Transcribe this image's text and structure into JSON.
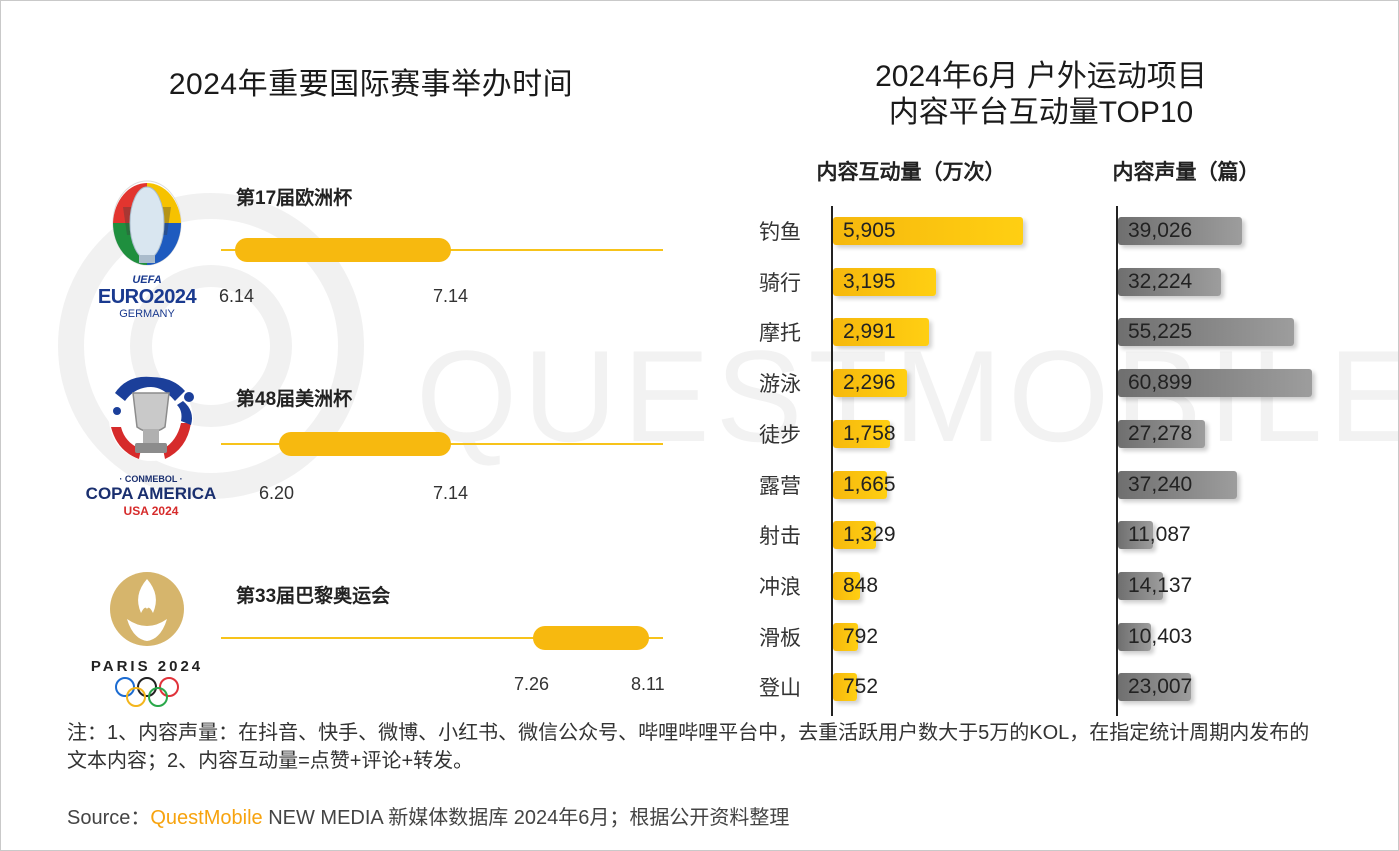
{
  "timeline": {
    "title": "2024年重要国际赛事举办时间",
    "accent_color": "#f7b90f",
    "events": [
      {
        "name": "第17届欧洲杯",
        "start": "6.14",
        "end": "7.14",
        "logo": {
          "type": "euro-2024-trophy-icon",
          "lines": [
            "UEFA",
            "EURO2024",
            "GERMANY"
          ]
        }
      },
      {
        "name": "第48届美洲杯",
        "start": "6.20",
        "end": "7.14",
        "logo": {
          "type": "copa-america-trophy-icon",
          "lines": [
            "· CONMEBOL ·",
            "COPA AMERICA",
            "USA 2024"
          ]
        }
      },
      {
        "name": "第33届巴黎奥运会",
        "start": "7.26",
        "end": "8.11",
        "logo": {
          "type": "paris-2024-flame-icon",
          "lines": [
            "PARIS 2024"
          ]
        }
      }
    ]
  },
  "chart_data": {
    "type": "bar",
    "title": "2024年6月 户外运动项目\n内容平台互动量TOP10",
    "categories": [
      "钓鱼",
      "骑行",
      "摩托",
      "游泳",
      "徒步",
      "露营",
      "射击",
      "冲浪",
      "滑板",
      "登山"
    ],
    "series": [
      {
        "name": "内容互动量（万次）",
        "color": "#f7b90f",
        "values": [
          5905,
          3195,
          2991,
          2296,
          1758,
          1665,
          1329,
          848,
          792,
          752
        ]
      },
      {
        "name": "内容声量（篇）",
        "color": "#7f7f7f",
        "values": [
          39026,
          32224,
          55225,
          60899,
          27278,
          37240,
          11087,
          14137,
          10403,
          23007
        ]
      }
    ],
    "orientation": "horizontal"
  },
  "footer": {
    "note": "注：1、内容声量：在抖音、快手、微博、小红书、微信公众号、哔哩哔哩平台中，去重活跃用户数大于5万的KOL，在指定统计周期内发布的文本内容；2、内容互动量=点赞+评论+转发。",
    "source_prefix": "Source：",
    "source_brand": "QuestMobile",
    "source_rest": " NEW MEDIA 新媒体数据库 2024年6月；根据公开资料整理"
  },
  "watermark": "QUESTMOBILE"
}
